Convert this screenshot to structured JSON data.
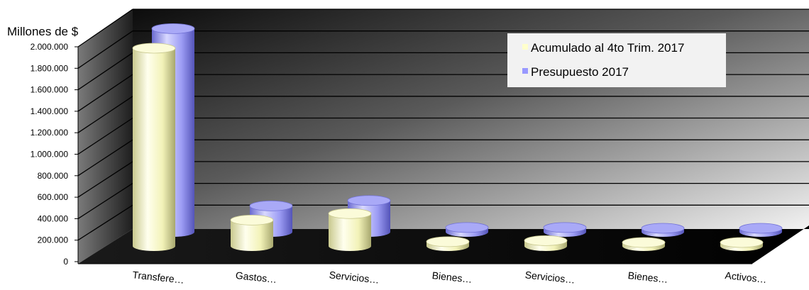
{
  "chart_data": {
    "type": "bar",
    "ylabel": "Millones de $",
    "ylim": [
      0,
      2000000
    ],
    "yticks": [
      "0",
      "200.000",
      "400.000",
      "600.000",
      "800.000",
      "1.000.000",
      "1.200.000",
      "1.400.000",
      "1.600.000",
      "1.800.000",
      "2.000.000"
    ],
    "categories": [
      "Transfere…",
      "Gastos…",
      "Servicios…",
      "Bienes…",
      "Servicios…",
      "Bienes…",
      "Activos…"
    ],
    "series": [
      {
        "name": "Acumulado al 4to Trim. 2017",
        "color": "#FFFFCC",
        "values": [
          1830000,
          240000,
          300000,
          40000,
          50000,
          10000,
          5000
        ]
      },
      {
        "name": "Presupuesto 2017",
        "color": "#9999FF",
        "values": [
          1880000,
          240000,
          290000,
          40000,
          40000,
          10000,
          5000
        ]
      }
    ],
    "legend": "top-right",
    "grid": true,
    "style": "3d-cylinder"
  }
}
